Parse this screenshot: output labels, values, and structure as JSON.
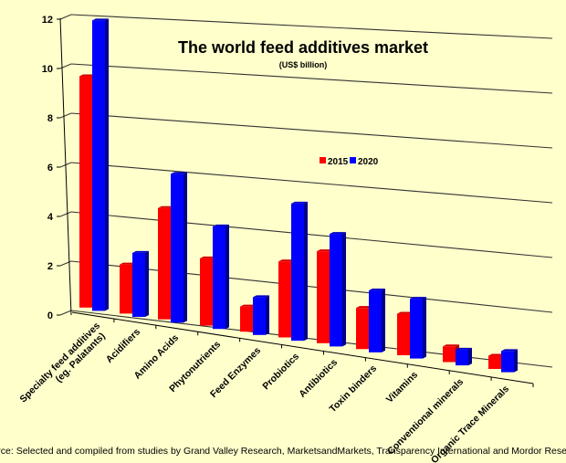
{
  "chart_data": {
    "type": "bar",
    "style": "3d-clustered-column",
    "title": "The world feed additives market",
    "subtitle": "(US$ billion)",
    "categories": [
      "Specialty feed additives (eg. Palatants)",
      "Acidifiers",
      "Amino Acids",
      "Phytonutrients",
      "Feed Enzymes",
      "Probiotics",
      "Antibiotics",
      "Toxin binders",
      "Vitamins",
      "Conventional minerals",
      "Organic Trace Minerals"
    ],
    "series": [
      {
        "name": "2015",
        "color": "#ff0000",
        "values": [
          9.5,
          2.0,
          4.5,
          2.7,
          1.0,
          3.0,
          3.6,
          1.6,
          1.6,
          0.6,
          0.5
        ]
      },
      {
        "name": "2020",
        "color": "#0000ff",
        "values": [
          11.9,
          2.6,
          6.0,
          4.1,
          1.5,
          5.4,
          4.4,
          2.4,
          2.3,
          0.6,
          0.8
        ]
      }
    ],
    "yticks": [
      "0",
      "2",
      "4",
      "6",
      "8",
      "10",
      "12"
    ],
    "ylim": [
      0,
      12
    ],
    "grid": true,
    "legend": "center",
    "background": "#ffffcc"
  },
  "source": "Source: Selected and compiled from studies by Grand Valley Research, MarketsandMarkets, Transparency International and Mordor Research"
}
